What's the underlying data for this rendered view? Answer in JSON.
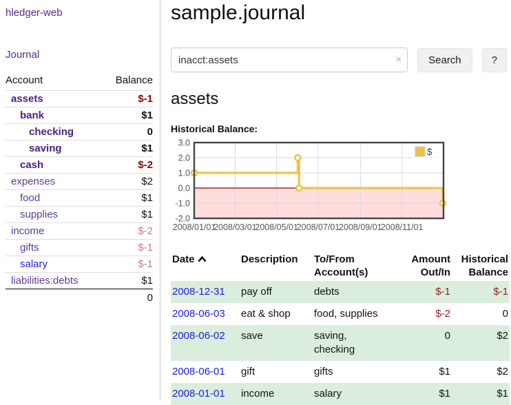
{
  "app": {
    "brand": "hledger-web",
    "nav_journal": "Journal"
  },
  "sidebar": {
    "columns": {
      "account": "Account",
      "balance": "Balance"
    },
    "accounts": [
      {
        "name": "assets",
        "balance": "$-1",
        "depth": 0,
        "selected": true,
        "balance_tone": "neg-strong"
      },
      {
        "name": "bank",
        "balance": "$1",
        "depth": 1,
        "selected": true,
        "balance_tone": "pos"
      },
      {
        "name": "checking",
        "balance": "0",
        "depth": 2,
        "selected": true,
        "balance_tone": "pos"
      },
      {
        "name": "saving",
        "balance": "$1",
        "depth": 2,
        "selected": true,
        "balance_tone": "pos"
      },
      {
        "name": "cash",
        "balance": "$-2",
        "depth": 1,
        "selected": true,
        "balance_tone": "neg-strong"
      },
      {
        "name": "expenses",
        "balance": "$2",
        "depth": 0,
        "selected": false,
        "balance_tone": "pos"
      },
      {
        "name": "food",
        "balance": "$1",
        "depth": 1,
        "selected": false,
        "balance_tone": "pos"
      },
      {
        "name": "supplies",
        "balance": "$1",
        "depth": 1,
        "selected": false,
        "balance_tone": "pos"
      },
      {
        "name": "income",
        "balance": "$-2",
        "depth": 0,
        "selected": false,
        "balance_tone": "neg-weak"
      },
      {
        "name": "gifts",
        "balance": "$-1",
        "depth": 1,
        "selected": false,
        "balance_tone": "neg-weak"
      },
      {
        "name": "salary",
        "balance": "$-1",
        "depth": 1,
        "selected": false,
        "balance_tone": "neg-weak",
        "link_tone": "blue"
      },
      {
        "name": "liabilities:debts",
        "balance": "$1",
        "depth": 0,
        "selected": false,
        "balance_tone": "pos"
      }
    ],
    "total": "0"
  },
  "header": {
    "title": "sample.journal"
  },
  "search": {
    "value": "inacct:assets",
    "clear_icon": "×",
    "button_label": "Search",
    "help_label": "?"
  },
  "account_page": {
    "title": "assets",
    "chart_label": "Historical Balance:"
  },
  "chart_data": {
    "type": "line",
    "title": "Historical Balance:",
    "step": true,
    "series": [
      {
        "name": "$",
        "color": "#edc240",
        "points": [
          {
            "x": "2008-01-01",
            "y": 1
          },
          {
            "x": "2008-06-01",
            "y": 2
          },
          {
            "x": "2008-06-03",
            "y": 0
          },
          {
            "x": "2008-12-31",
            "y": -1
          }
        ]
      }
    ],
    "ylim": [
      -2,
      3
    ],
    "yticks": [
      "3.0",
      "2.0",
      "1.0",
      "0.0",
      "-1.0",
      "-2.0"
    ],
    "ytick_values": [
      3,
      2,
      1,
      0,
      -1,
      -2
    ],
    "xticks": [
      "2008/01/01",
      "2008/03/01",
      "2008/05/01",
      "2008/07/01",
      "2008/09/01",
      "2008/11/01"
    ],
    "xrange": [
      "2008-01-01",
      "2009-01-01"
    ],
    "grid": true,
    "legend": "$",
    "legend_position": "top-right",
    "negative_region_fill": "#ffdddd",
    "zero_line_color": "#8b0000",
    "line_color": "#edc240",
    "grid_color": "#d9d9d9",
    "border_color": "#444444"
  },
  "register": {
    "columns": {
      "date": "Date",
      "description": "Description",
      "accounts": "To/From\nAccount(s)",
      "amount": "Amount\nOut/In",
      "balance": "Historical\nBalance"
    },
    "sort_icon": "chevron-up",
    "rows": [
      {
        "date": "2008-12-31",
        "description": "pay off",
        "accounts": "debts",
        "amount": "$-1",
        "balance": "$-1",
        "amount_neg": true,
        "balance_neg": true,
        "shaded": true
      },
      {
        "date": "2008-06-03",
        "description": "eat & shop",
        "accounts": "food, supplies",
        "amount": "$-2",
        "balance": "0",
        "amount_neg": true,
        "balance_neg": false,
        "shaded": false
      },
      {
        "date": "2008-06-02",
        "description": "save",
        "accounts": "saving,\nchecking",
        "amount": "0",
        "balance": "$2",
        "amount_neg": false,
        "balance_neg": false,
        "shaded": true
      },
      {
        "date": "2008-06-01",
        "description": "gift",
        "accounts": "gifts",
        "amount": "$1",
        "balance": "$2",
        "amount_neg": false,
        "balance_neg": false,
        "shaded": false
      },
      {
        "date": "2008-01-01",
        "description": "income",
        "accounts": "salary",
        "amount": "$1",
        "balance": "$1",
        "amount_neg": false,
        "balance_neg": false,
        "shaded": true
      }
    ]
  }
}
